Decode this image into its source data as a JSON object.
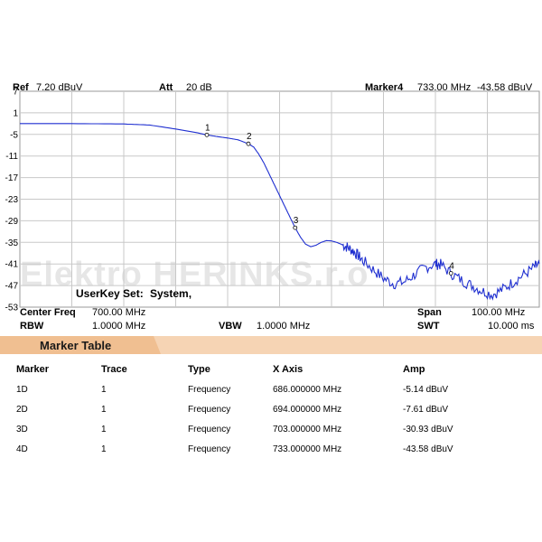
{
  "header": {
    "ref_label": "Ref",
    "ref_value": "7.20 dBuV",
    "att_label": "Att",
    "att_value": "20 dB",
    "marker_label": "Marker4",
    "marker_freq": "733.00 MHz",
    "marker_amp": "-43.58 dBuV"
  },
  "watermark": "Elektro HERINKS.r.o",
  "userkey": {
    "label": "UserKey Set:",
    "value": "System,"
  },
  "settings": {
    "center_freq_label": "Center Freq",
    "center_freq_value": "700.00 MHz",
    "span_label": "Span",
    "span_value": "100.00 MHz",
    "rbw_label": "RBW",
    "rbw_value": "1.0000 MHz",
    "vbw_label": "VBW",
    "vbw_value": "1.0000 MHz",
    "swt_label": "SWT",
    "swt_value": "10.000 ms"
  },
  "marker_table": {
    "title": "Marker Table",
    "columns": [
      "Marker",
      "Trace",
      "Type",
      "X Axis",
      "Amp"
    ],
    "rows": [
      [
        "1D",
        "1",
        "Frequency",
        "686.000000 MHz",
        "-5.14 dBuV"
      ],
      [
        "2D",
        "1",
        "Frequency",
        "694.000000 MHz",
        "-7.61 dBuV"
      ],
      [
        "3D",
        "1",
        "Frequency",
        "703.000000 MHz",
        "-30.93 dBuV"
      ],
      [
        "4D",
        "1",
        "Frequency",
        "733.000000 MHz",
        "-43.58 dBuV"
      ]
    ]
  },
  "colors": {
    "trace": "#1f2fd0",
    "grid": "#c8c8c8",
    "table_bar": "#f6d4b4",
    "table_tab": "#f0bf91"
  },
  "chart_data": {
    "type": "line",
    "title": "",
    "xlabel": "",
    "ylabel": "",
    "xlim": [
      650,
      750
    ],
    "ylim": [
      -53,
      7
    ],
    "yticks": [
      7,
      1,
      -5,
      -11,
      -17,
      -23,
      -29,
      -35,
      -41,
      -47,
      -53
    ],
    "grid": true,
    "series": [
      {
        "x": [
          650,
          660,
          670,
          675,
          680,
          684,
          686,
          688,
          690,
          692,
          694,
          695,
          696,
          697,
          698,
          699,
          700,
          701,
          702,
          703,
          704,
          705,
          706,
          707,
          708,
          709,
          710,
          711,
          712,
          713,
          714,
          715,
          716,
          718,
          720,
          722,
          724,
          726,
          728,
          730,
          731,
          733,
          735,
          737,
          739,
          741,
          743,
          745,
          747,
          749,
          750
        ],
        "y": [
          -2.0,
          -2.0,
          -2.1,
          -2.4,
          -3.5,
          -4.5,
          -5.14,
          -5.6,
          -6.0,
          -6.5,
          -7.61,
          -8.5,
          -10.5,
          -13.0,
          -16.0,
          -19.0,
          -22.0,
          -25.0,
          -28.0,
          -30.93,
          -33.5,
          -35.5,
          -36.2,
          -35.8,
          -35.0,
          -34.5,
          -34.6,
          -35.0,
          -35.6,
          -36.3,
          -37.2,
          -38.5,
          -40.0,
          -42.5,
          -45.0,
          -46.5,
          -46.0,
          -44.0,
          -42.0,
          -41.0,
          -41.2,
          -43.58,
          -45.5,
          -47.0,
          -48.5,
          -49.5,
          -48.0,
          -46.0,
          -44.0,
          -42.0,
          -41.0
        ]
      }
    ],
    "markers": [
      {
        "label": "1",
        "x": 686,
        "y": -5.14
      },
      {
        "label": "2",
        "x": 694,
        "y": -7.61
      },
      {
        "label": "3",
        "x": 703,
        "y": -30.93
      },
      {
        "label": "4",
        "x": 733,
        "y": -43.58
      }
    ]
  }
}
